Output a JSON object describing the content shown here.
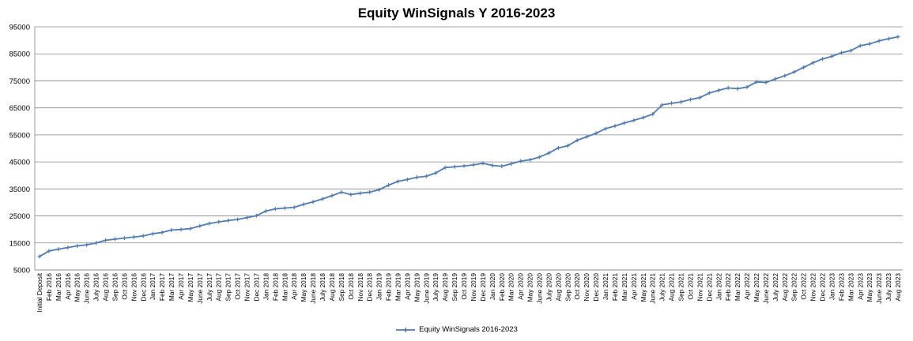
{
  "chart_data": {
    "type": "line",
    "title": "Equity WinSignals Y 2016-2023",
    "xlabel": "",
    "ylabel": "",
    "ylim": [
      5000,
      95000
    ],
    "yticks": [
      5000,
      15000,
      25000,
      35000,
      45000,
      55000,
      65000,
      75000,
      85000,
      95000
    ],
    "grid": "horizontal",
    "legend_position": "bottom",
    "colors": {
      "series": "#4f7bb1",
      "grid": "#868686",
      "axis": "#868686"
    },
    "categories": [
      "Initial Deposit",
      "Feb 2016",
      "Mar 2016",
      "Apr 2016",
      "May 2016",
      "June 2016",
      "July 2016",
      "Aug 2016",
      "Sep 2016",
      "Oct 2016",
      "Nov 2016",
      "Dec 2016",
      "Jan 2017",
      "Feb 2017",
      "Mar 2017",
      "Apr 2017",
      "May 2017",
      "June 2017",
      "July 2017",
      "Aug 2017",
      "Sep 2017",
      "Oct 2017",
      "Nov 2017",
      "Dec 2017",
      "Jan 2018",
      "Feb 2018",
      "Mar 2018",
      "Apr 2018",
      "May 2018",
      "June 2018",
      "July 2018",
      "Aug 2018",
      "Sep 2018",
      "Oct 2018",
      "Nov 2018",
      "Dec 2018",
      "Jan 2019",
      "Feb 2019",
      "Mar 2019",
      "Apr 2019",
      "May 2019",
      "June 2019",
      "July 2019",
      "Aug 2019",
      "Sep 2019",
      "Oct 2019",
      "Nov 2019",
      "Dec 2019",
      "Jan 2020",
      "Feb 2020",
      "Mar 2020",
      "Apr 2020",
      "May 2020",
      "June 2020",
      "July 2020",
      "Aug 2020",
      "Sep 2020",
      "Oct 2020",
      "Nov 2020",
      "Dec 2020",
      "Jan 2021",
      "Feb 2021",
      "Mar 2021",
      "Apr 2021",
      "May 2021",
      "June 2021",
      "July 2021",
      "Aug 2021",
      "Sep 2021",
      "Oct 2021",
      "Nov 2021",
      "Dec 2021",
      "Jan 2022",
      "Feb 2022",
      "Mar 2022",
      "Apr 2022",
      "May 2022",
      "June 2022",
      "July 2022",
      "Aug 2022",
      "Sep 2022",
      "Oct 2022",
      "Nov 2022",
      "Dec 2022",
      "Jan 2023",
      "Feb 2023",
      "Mar 2023",
      "Apr 2023",
      "May 2023",
      "June 2023",
      "July 2023",
      "Aug 2023"
    ],
    "series": [
      {
        "name": "Equity WinSignals 2016-2023",
        "values": [
          10000,
          12000,
          12700,
          13300,
          13900,
          14300,
          15000,
          16000,
          16400,
          16800,
          17200,
          17600,
          18400,
          18900,
          19800,
          20000,
          20300,
          21300,
          22200,
          22800,
          23300,
          23700,
          24400,
          25100,
          26800,
          27600,
          27900,
          28200,
          29300,
          30200,
          31300,
          32500,
          33800,
          32900,
          33400,
          33800,
          34700,
          36400,
          37800,
          38500,
          39300,
          39700,
          40900,
          42900,
          43200,
          43500,
          43900,
          44500,
          43700,
          43400,
          44300,
          45300,
          45800,
          46800,
          48300,
          50200,
          51000,
          53000,
          54300,
          55600,
          57300,
          58300,
          59400,
          60400,
          61400,
          62700,
          66100,
          66700,
          67200,
          68100,
          68800,
          70500,
          71500,
          72400,
          72100,
          72700,
          74600,
          74400,
          75700,
          76900,
          78300,
          80000,
          81700,
          83100,
          84100,
          85400,
          86200,
          88000,
          88700,
          89800,
          90600,
          91300
        ]
      }
    ]
  }
}
